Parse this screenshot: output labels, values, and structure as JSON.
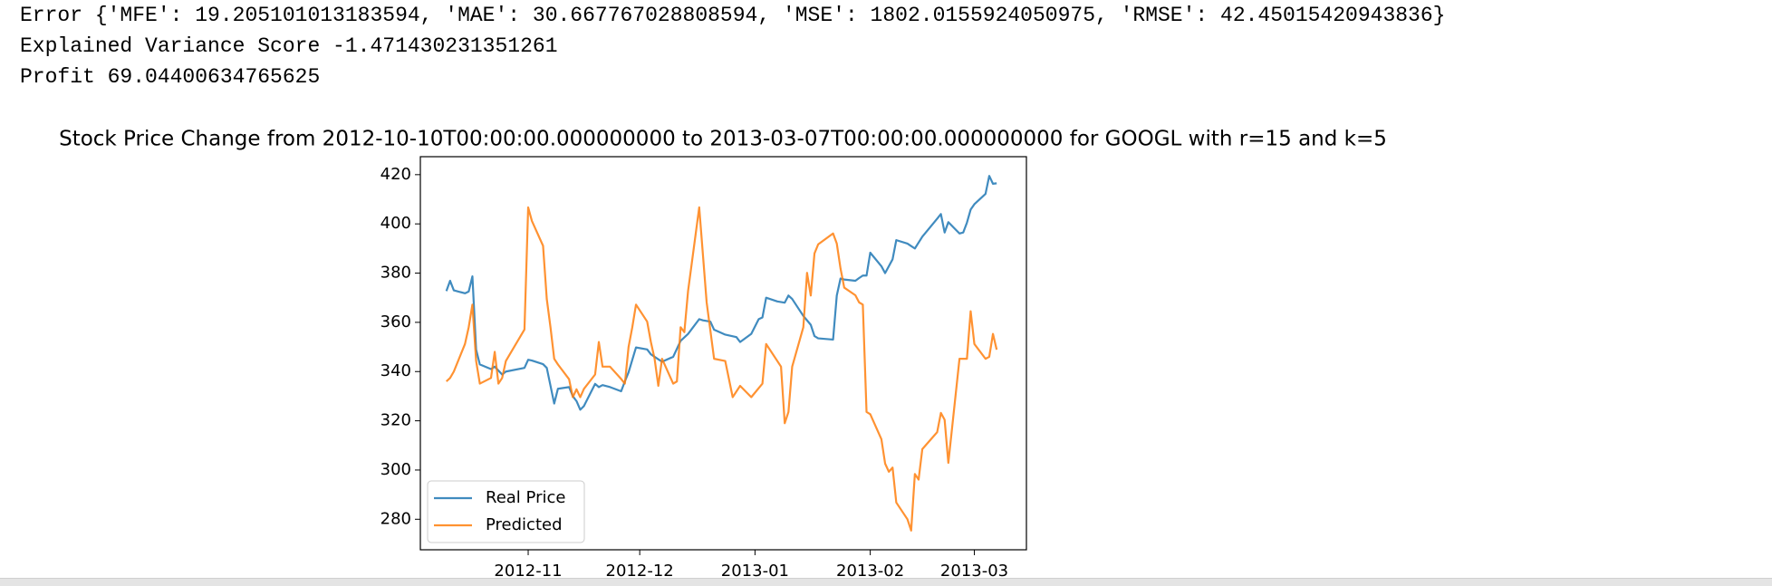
{
  "output": {
    "error_line": "Error {'MFE': 19.205101013183594, 'MAE': 30.667767028808594, 'MSE': 1802.0155924050975, 'RMSE': 42.45015420943836}",
    "variance_line": "Explained Variance Score -1.471430231351261",
    "profit_line": "Profit 69.04400634765625"
  },
  "chart_data": {
    "type": "line",
    "title": "Stock Price Change from 2012-10-10T00:00:00.000000000 to 2013-03-07T00:00:00.000000000 for GOOGL with r=15 and k=5",
    "legend": "lower left",
    "xlim": [
      "2012-10-03",
      "2013-03-15"
    ],
    "xticks": [
      {
        "value": "2012-11-01",
        "label": "2012-11"
      },
      {
        "value": "2012-12-01",
        "label": "2012-12"
      },
      {
        "value": "2013-01-01",
        "label": "2013-01"
      },
      {
        "value": "2013-02-01",
        "label": "2013-02"
      },
      {
        "value": "2013-03-01",
        "label": "2013-03"
      }
    ],
    "ylim": [
      267.6,
      427.3
    ],
    "yticks": [
      280,
      300,
      320,
      340,
      360,
      380,
      400,
      420
    ],
    "series": [
      {
        "name": "Real Price",
        "color": "#1f77b4",
        "x": [
          "2012-10-10",
          "2012-10-11",
          "2012-10-12",
          "2012-10-15",
          "2012-10-16",
          "2012-10-17",
          "2012-10-18",
          "2012-10-19",
          "2012-10-22",
          "2012-10-23",
          "2012-10-25",
          "2012-10-26",
          "2012-10-31",
          "2012-11-01",
          "2012-11-02",
          "2012-11-05",
          "2012-11-06",
          "2012-11-08",
          "2012-11-09",
          "2012-11-12",
          "2012-11-13",
          "2012-11-14",
          "2012-11-15",
          "2012-11-16",
          "2012-11-19",
          "2012-11-20",
          "2012-11-21",
          "2012-11-23",
          "2012-11-26",
          "2012-11-27",
          "2012-11-28",
          "2012-11-30",
          "2012-12-03",
          "2012-12-04",
          "2012-12-06",
          "2012-12-07",
          "2012-12-10",
          "2012-12-12",
          "2012-12-14",
          "2012-12-17",
          "2012-12-18",
          "2012-12-20",
          "2012-12-21",
          "2012-12-24",
          "2012-12-27",
          "2012-12-28",
          "2012-12-31",
          "2013-01-02",
          "2013-01-03",
          "2013-01-04",
          "2013-01-07",
          "2013-01-09",
          "2013-01-10",
          "2013-01-11",
          "2013-01-14",
          "2013-01-16",
          "2013-01-17",
          "2013-01-18",
          "2013-01-22",
          "2013-01-23",
          "2013-01-24",
          "2013-01-25",
          "2013-01-28",
          "2013-01-29",
          "2013-01-30",
          "2013-01-31",
          "2013-02-01",
          "2013-02-04",
          "2013-02-05",
          "2013-02-07",
          "2013-02-08",
          "2013-02-11",
          "2013-02-12",
          "2013-02-13",
          "2013-02-14",
          "2013-02-15",
          "2013-02-19",
          "2013-02-20",
          "2013-02-21",
          "2013-02-22",
          "2013-02-25",
          "2013-02-26",
          "2013-02-27",
          "2013-02-28",
          "2013-03-01",
          "2013-03-04",
          "2013-03-05",
          "2013-03-06",
          "2013-03-07"
        ],
        "values": [
          372.7,
          376.9,
          373,
          371.8,
          372.5,
          378.7,
          348.9,
          342.9,
          341,
          342,
          338.8,
          340,
          341.5,
          344.8,
          344.5,
          343,
          341.5,
          327,
          333,
          333.7,
          330,
          328,
          324.5,
          326,
          335,
          333.7,
          334.5,
          333.7,
          332,
          336,
          339.7,
          349.8,
          349,
          347,
          345,
          344,
          346,
          352.5,
          355.3,
          361.3,
          360.8,
          360.3,
          357,
          355,
          354,
          352,
          355.3,
          361.3,
          362,
          370,
          368.5,
          368,
          370.9,
          369.5,
          362.6,
          359,
          354.4,
          353.5,
          353,
          370.9,
          377.8,
          377.4,
          376.9,
          378,
          379,
          379,
          388.3,
          382.8,
          380,
          385.6,
          393.4,
          392,
          391,
          390,
          392.4,
          394.8,
          402.1,
          404,
          396.5,
          400.7,
          396.1,
          396.5,
          400.5,
          405.8,
          408,
          412.2,
          419.5,
          416.3,
          416.5
        ]
      },
      {
        "name": "Predicted",
        "color": "#ff7f0e",
        "x": [
          "2012-10-10",
          "2012-10-11",
          "2012-10-12",
          "2012-10-15",
          "2012-10-16",
          "2012-10-17",
          "2012-10-18",
          "2012-10-19",
          "2012-10-22",
          "2012-10-23",
          "2012-10-24",
          "2012-10-25",
          "2012-10-26",
          "2012-10-31",
          "2012-11-01",
          "2012-11-02",
          "2012-11-05",
          "2012-11-06",
          "2012-11-07",
          "2012-11-08",
          "2012-11-09",
          "2012-11-12",
          "2012-11-13",
          "2012-11-14",
          "2012-11-15",
          "2012-11-16",
          "2012-11-19",
          "2012-11-20",
          "2012-11-21",
          "2012-11-23",
          "2012-11-26",
          "2012-11-27",
          "2012-11-28",
          "2012-11-29",
          "2012-11-30",
          "2012-12-03",
          "2012-12-04",
          "2012-12-05",
          "2012-12-06",
          "2012-12-07",
          "2012-12-10",
          "2012-12-11",
          "2012-12-12",
          "2012-12-13",
          "2012-12-14",
          "2012-12-17",
          "2012-12-19",
          "2012-12-21",
          "2012-12-24",
          "2012-12-26",
          "2012-12-28",
          "2012-12-31",
          "2013-01-03",
          "2013-01-04",
          "2013-01-08",
          "2013-01-09",
          "2013-01-10",
          "2013-01-11",
          "2013-01-14",
          "2013-01-15",
          "2013-01-16",
          "2013-01-17",
          "2013-01-18",
          "2013-01-22",
          "2013-01-23",
          "2013-01-24",
          "2013-01-25",
          "2013-01-28",
          "2013-01-29",
          "2013-01-30",
          "2013-01-31",
          "2013-02-01",
          "2013-02-04",
          "2013-02-05",
          "2013-02-06",
          "2013-02-07",
          "2013-02-08",
          "2013-02-11",
          "2013-02-12",
          "2013-02-13",
          "2013-02-14",
          "2013-02-15",
          "2013-02-19",
          "2013-02-20",
          "2013-02-21",
          "2013-02-22",
          "2013-02-25",
          "2013-02-26",
          "2013-02-27",
          "2013-02-28",
          "2013-03-01",
          "2013-03-04",
          "2013-03-05",
          "2013-03-06",
          "2013-03-07"
        ],
        "values": [
          336,
          337.4,
          340,
          351.2,
          358,
          367.2,
          344.3,
          335.1,
          337.4,
          348,
          335.1,
          337.4,
          344.3,
          357.1,
          406.7,
          401.2,
          391.1,
          369.5,
          358,
          345.2,
          342.9,
          336.9,
          329.6,
          332.8,
          329.6,
          333,
          338.8,
          352,
          342,
          342,
          337,
          335.1,
          350,
          358,
          367.2,
          360.3,
          352,
          345.2,
          334.2,
          345.2,
          335.1,
          336,
          358,
          356,
          372.7,
          406.7,
          368.1,
          345.2,
          344.3,
          329.6,
          334.2,
          329.6,
          335.1,
          351.2,
          342,
          319,
          323.6,
          342,
          358,
          380.1,
          370.9,
          388,
          391.7,
          396.1,
          392,
          381.9,
          374.1,
          371,
          368.1,
          367.2,
          323.6,
          322.7,
          312.5,
          302.6,
          299.3,
          301,
          286.8,
          280,
          275.4,
          298.4,
          296.1,
          308.5,
          315.4,
          323.2,
          320.4,
          302.9,
          345.2,
          345.2,
          345.2,
          364.5,
          351.2,
          345.2,
          346,
          355.3,
          348.9
        ]
      }
    ]
  }
}
